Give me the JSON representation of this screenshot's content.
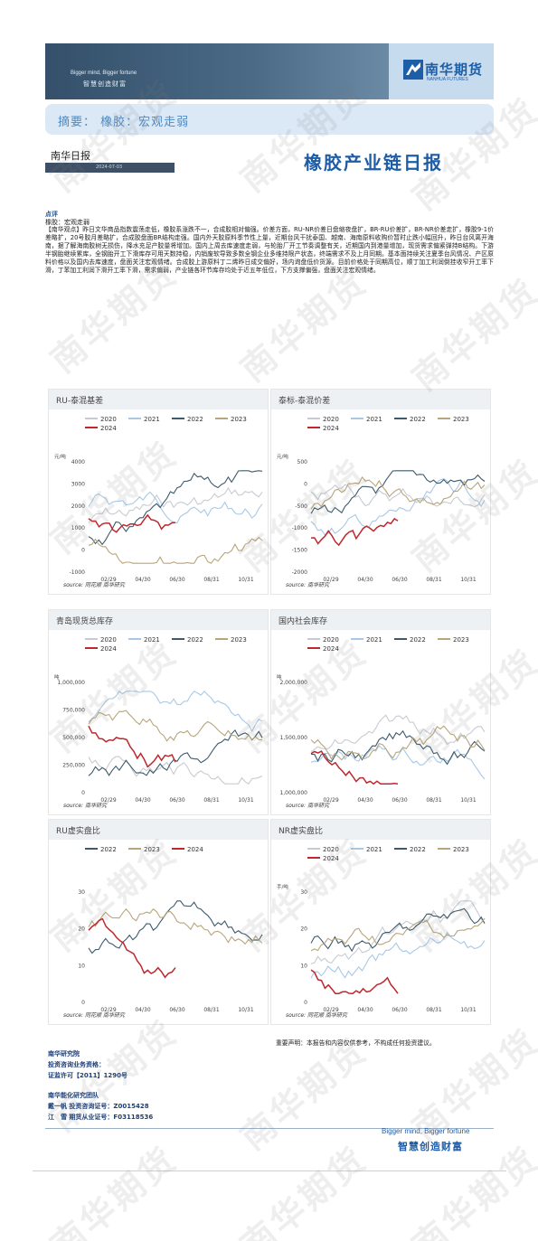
{
  "banner": {
    "slogan_en": "Bigger mind, Bigger fortune",
    "slogan_cn": "智慧创造财富",
    "logo_cn": "南华期货",
    "logo_en": "NANHUA FUTURES"
  },
  "summary": {
    "text": "摘要：  橡胶：宏观走弱"
  },
  "header": {
    "daily_label": "南华日报",
    "date": "2024-07-03",
    "title": "橡胶产业链日报"
  },
  "comment": {
    "heading": "点评",
    "sub": "橡胶：宏观走弱",
    "body": "【南华观点】昨日文华商品指数震荡走低，橡胶系涨跌不一，合成胶相对偏强。价差方面，RU-NR价差日盘缩夜盘扩，BR-RU价差扩，BR-NR价差走扩，橡胶9-1价差略扩，20号胶月差略扩，合成胶盘面BR结构走强。国内外天胶原料季节性上量，近期台风干扰泰国、越南、海南原料收购价暂时止跌小幅回升，昨日台风离开海南，据了解海南胶树无损伤，降水充足产胶量将增加。国内上周去库速度走弱，与轮胎厂开工节奏调整有关，近期国内到港量增加，现货需求偏紧弹持B结构。下游半钢胎继续累库，全钢胎开工下滑库存可用天数持稳，内销废软导致多数全钢企业多维持限产状态，终端需求不及上月同期。基本面持续关注夏季台风情况、产区原料价格以及国内去库速度，盘面关注宏观情绪。合成胶上游原料丁二烯昨日成交偏好，场内询盘低价货源。目前价格处于同期高位，顺丁加工利润倒挂收窄开工率下滑，丁苯加工利润下滑开工率下滑，需求偏弱，产业链各环节库存均处于近五年低位，下方支撑偏强，盘面关注宏观情绪。"
  },
  "panels": [
    {
      "title": "RU-泰混基差",
      "source": "source: 同花顺 南华研究",
      "legend": [
        {
          "label": "2020",
          "color": "#c7cbd1"
        },
        {
          "label": "2021",
          "color": "#a8c8e6"
        },
        {
          "label": "2022",
          "color": "#3d5a6c"
        },
        {
          "label": "2023",
          "color": "#b8a57a"
        },
        {
          "label": "2024",
          "color": "#c0272d"
        }
      ],
      "unit": "元/吨",
      "y_ticks": [
        "4000",
        "3000",
        "2000",
        "1000",
        "0",
        "-1000"
      ],
      "x_ticks": [
        "02/29",
        "04/30",
        "06/30",
        "08/31",
        "10/31"
      ]
    },
    {
      "title": "泰标-泰混价差",
      "source": "source: 南华研究",
      "legend": [
        {
          "label": "2020",
          "color": "#c7cbd1"
        },
        {
          "label": "2021",
          "color": "#a8c8e6"
        },
        {
          "label": "2022",
          "color": "#3d5a6c"
        },
        {
          "label": "2023",
          "color": "#b8a57a"
        },
        {
          "label": "2024",
          "color": "#c0272d"
        }
      ],
      "unit": "元/吨",
      "y_ticks": [
        "500",
        "0",
        "-500",
        "-1000",
        "-1500",
        "-2000"
      ],
      "x_ticks": [
        "02/29",
        "04/30",
        "06/30",
        "08/31",
        "10/31"
      ]
    },
    {
      "title": "青岛现货总库存",
      "source": "source: 南华研究",
      "legend": [
        {
          "label": "2020",
          "color": "#c7cbd1"
        },
        {
          "label": "2021",
          "color": "#a8c8e6"
        },
        {
          "label": "2022",
          "color": "#3d5a6c"
        },
        {
          "label": "2023",
          "color": "#b8a57a"
        },
        {
          "label": "2024",
          "color": "#c0272d"
        }
      ],
      "unit": "吨",
      "y_ticks": [
        "1,000,000",
        "750,000",
        "500,000",
        "250,000",
        "0"
      ],
      "x_ticks": [
        "02/29",
        "04/30",
        "06/30",
        "08/31",
        "10/31"
      ]
    },
    {
      "title": "国内社会库存",
      "source": "source: 南华研究",
      "legend": [
        {
          "label": "2020",
          "color": "#c7cbd1"
        },
        {
          "label": "2021",
          "color": "#a8c8e6"
        },
        {
          "label": "2022",
          "color": "#3d5a6c"
        },
        {
          "label": "2023",
          "color": "#b8a57a"
        },
        {
          "label": "2024",
          "color": "#c0272d"
        }
      ],
      "unit": "吨",
      "y_ticks": [
        "2,000,000",
        "1,500,000",
        "1,000,000"
      ],
      "x_ticks": [
        "02/29",
        "04/30",
        "06/30",
        "08/31",
        "10/31"
      ]
    },
    {
      "title": "RU虚实盘比",
      "source": "source: 同花顺 南华研究",
      "legend": [
        {
          "label": "2022",
          "color": "#3d5a6c"
        },
        {
          "label": "2023",
          "color": "#b8a57a"
        },
        {
          "label": "2024",
          "color": "#c0272d"
        }
      ],
      "unit": "",
      "y_ticks": [
        "30",
        "20",
        "10",
        "0"
      ],
      "x_ticks": [
        "02/29",
        "04/30",
        "06/30",
        "08/31",
        "10/31"
      ]
    },
    {
      "title": "NR虚实盘比",
      "source": "source: 同花顺 南华研究",
      "legend": [
        {
          "label": "2020",
          "color": "#c7cbd1"
        },
        {
          "label": "2021",
          "color": "#a8c8e6"
        },
        {
          "label": "2022",
          "color": "#3d5a6c"
        },
        {
          "label": "2023",
          "color": "#b8a57a"
        },
        {
          "label": "2024",
          "color": "#c0272d"
        }
      ],
      "unit": "手/吨",
      "y_ticks": [
        "30",
        "20",
        "10",
        "0"
      ],
      "x_ticks": [
        "02/29",
        "04/30",
        "06/30",
        "08/31",
        "10/31"
      ]
    }
  ],
  "footer": {
    "disclaimer": "重要声明：本报告和内容仅供参考，不构成任何投资建议。",
    "institute": "南华研究院",
    "qualification_label": "投资咨询业务资格：",
    "license": "证监许可【2011】1290号",
    "team": "南华能化研究团队",
    "member1": "戴一帆 投资咨询证号：Z0015428",
    "member2": "江　雪 期货从业证号：F03118536",
    "slogan_en": "Bigger mind, Bigger fortune",
    "slogan_cn": "智慧创造财富"
  },
  "watermark": "南华期货"
}
